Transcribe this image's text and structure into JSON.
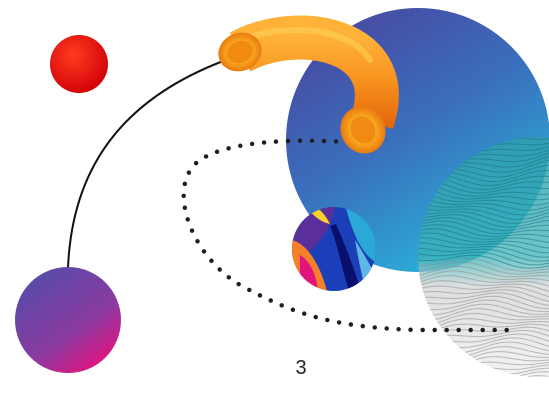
{
  "slide": {
    "page_number": "3"
  },
  "palette": {
    "red_circle": "#e8090a",
    "blue_circle_top": "#5449a3",
    "blue_circle_bottom": "#2aa9d6",
    "tube_orange": "#f7931e",
    "tube_light": "#fbc02d",
    "purple_ball": "#6a3f9e",
    "magenta_ball": "#e3137e",
    "dotted_path": "#1f1f1f",
    "teal_texture": "#3bb3b8"
  },
  "decorations": {
    "icons": [
      "red-circle",
      "orange-tube",
      "blue-circle",
      "fingerprint-texture",
      "abstract-marble-ball",
      "gradient-ball",
      "curved-line",
      "dotted-loop"
    ]
  }
}
